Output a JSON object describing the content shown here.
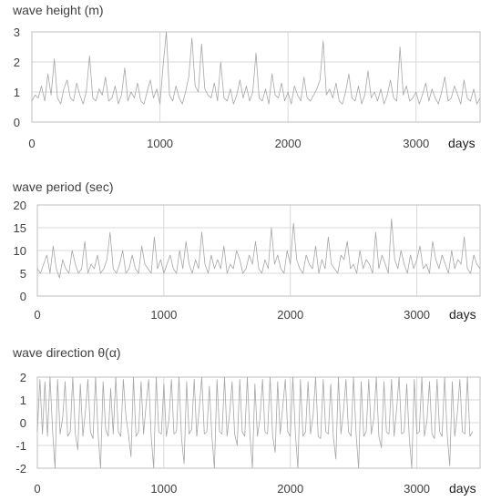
{
  "chart_data": [
    {
      "type": "line",
      "title": "wave height (m)",
      "xlabel": "days",
      "ylabel": "",
      "xlim": [
        0,
        3500
      ],
      "ylim": [
        0,
        3
      ],
      "x_ticks": [
        0,
        1000,
        2000,
        3000
      ],
      "y_ticks": [
        0,
        1,
        2,
        3
      ],
      "grid": true,
      "line_color": "#a6a6a6",
      "series": [
        {
          "x_start": 0,
          "x_step": 25,
          "values": [
            0.7,
            0.9,
            0.8,
            1.2,
            0.7,
            1.6,
            0.9,
            2.1,
            0.8,
            0.6,
            1.1,
            1.4,
            0.8,
            0.7,
            1.3,
            0.9,
            0.6,
            1.0,
            2.2,
            0.8,
            0.7,
            1.1,
            0.9,
            1.5,
            0.7,
            0.8,
            1.2,
            0.6,
            0.9,
            1.8,
            0.7,
            1.0,
            0.8,
            1.3,
            0.7,
            0.6,
            1.0,
            1.4,
            0.8,
            1.1,
            0.6,
            1.9,
            3.0,
            0.9,
            0.7,
            1.2,
            0.8,
            0.6,
            1.0,
            1.5,
            2.8,
            1.2,
            1.0,
            2.6,
            1.1,
            0.9,
            0.8,
            1.3,
            0.7,
            2.0,
            0.8,
            0.7,
            1.1,
            0.6,
            0.9,
            1.4,
            0.8,
            1.2,
            0.7,
            1.0,
            2.3,
            0.8,
            0.7,
            1.1,
            0.6,
            1.6,
            0.9,
            0.8,
            1.3,
            0.7,
            1.0,
            0.6,
            1.2,
            0.9,
            0.7,
            1.5,
            0.8,
            0.7,
            0.9,
            1.1,
            1.4,
            2.7,
            0.9,
            1.1,
            0.8,
            1.3,
            0.7,
            0.6,
            1.0,
            1.6,
            0.8,
            0.7,
            1.2,
            0.6,
            0.9,
            1.7,
            0.8,
            1.0,
            0.7,
            1.1,
            0.6,
            0.9,
            1.4,
            0.8,
            0.7,
            2.5,
            0.9,
            1.2,
            0.7,
            0.8,
            1.0,
            0.6,
            0.9,
            1.3,
            0.7,
            1.1,
            0.8,
            0.6,
            1.0,
            1.5,
            0.7,
            0.8,
            1.2,
            0.9,
            0.6,
            1.4,
            0.8,
            0.7,
            1.1,
            0.6,
            0.8,
            1.2,
            0.7,
            2.0
          ]
        }
      ]
    },
    {
      "type": "line",
      "title": "wave period (sec)",
      "xlabel": "days",
      "ylabel": "",
      "xlim": [
        0,
        3500
      ],
      "ylim": [
        0,
        20
      ],
      "x_ticks": [
        0,
        1000,
        2000,
        3000
      ],
      "y_ticks": [
        0,
        5,
        10,
        15,
        20
      ],
      "grid": true,
      "line_color": "#a6a6a6",
      "series": [
        {
          "x_start": 0,
          "x_step": 25,
          "values": [
            6,
            5,
            7,
            9,
            5,
            11,
            6,
            4,
            8,
            6,
            5,
            10,
            7,
            5,
            6,
            12,
            5,
            7,
            6,
            9,
            5,
            6,
            8,
            14,
            6,
            5,
            7,
            10,
            5,
            6,
            9,
            6,
            5,
            11,
            7,
            6,
            5,
            13,
            6,
            8,
            5,
            7,
            9,
            6,
            5,
            10,
            6,
            12,
            7,
            5,
            8,
            6,
            14,
            7,
            5,
            9,
            6,
            8,
            6,
            11,
            5,
            7,
            6,
            10,
            8,
            5,
            6,
            9,
            7,
            12,
            6,
            5,
            8,
            6,
            15,
            7,
            9,
            6,
            5,
            10,
            7,
            16,
            8,
            6,
            5,
            9,
            7,
            6,
            11,
            5,
            8,
            6,
            13,
            7,
            6,
            5,
            9,
            8,
            12,
            6,
            7,
            5,
            10,
            6,
            8,
            7,
            5,
            14,
            6,
            9,
            7,
            5,
            17,
            8,
            6,
            10,
            7,
            5,
            9,
            6,
            8,
            11,
            6,
            7,
            5,
            12,
            8,
            6,
            9,
            7,
            5,
            10,
            6,
            8,
            7,
            13,
            6,
            5,
            9,
            7,
            6,
            11,
            8,
            7
          ]
        }
      ]
    },
    {
      "type": "line",
      "title": "wave direction θ(α)",
      "xlabel": "days",
      "ylabel": "",
      "xlim": [
        0,
        3500
      ],
      "ylim": [
        -2,
        2
      ],
      "x_ticks": [
        0,
        1000,
        2000,
        3000
      ],
      "y_ticks": [
        -2,
        -1,
        0,
        1,
        2
      ],
      "grid": true,
      "line_color": "#a6a6a6",
      "series": [
        {
          "x_start": 0,
          "x_step": 20,
          "values": [
            -0.4,
            1.9,
            -0.5,
            1.8,
            -0.6,
            2.0,
            -0.3,
            -2.0,
            1.9,
            -0.5,
            0.2,
            1.8,
            -0.6,
            -0.4,
            2.0,
            -0.5,
            -1.2,
            1.7,
            -0.6,
            0.5,
            1.9,
            -0.4,
            -0.7,
            2.0,
            -0.5,
            -2.0,
            1.8,
            -0.3,
            -0.6,
            1.5,
            -0.5,
            2.0,
            -0.4,
            -0.6,
            1.9,
            0.3,
            -0.5,
            -1.5,
            2.0,
            -0.6,
            -0.4,
            1.8,
            -0.5,
            0.8,
            1.9,
            -0.6,
            -2.0,
            2.0,
            -0.4,
            -0.5,
            1.7,
            -0.6,
            0.1,
            1.9,
            -0.5,
            -0.4,
            2.0,
            -0.7,
            -1.8,
            1.8,
            -0.5,
            -0.3,
            1.9,
            -0.6,
            0.6,
            2.0,
            -0.5,
            -0.4,
            1.6,
            -0.6,
            -2.0,
            1.9,
            -0.4,
            -0.5,
            2.0,
            -0.6,
            0.4,
            1.8,
            -0.5,
            -1.0,
            1.9,
            -0.4,
            -0.6,
            2.0,
            -0.5,
            -2.0,
            1.7,
            -0.6,
            0.2,
            1.9,
            -0.4,
            -0.5,
            2.0,
            -0.6,
            -1.3,
            1.8,
            -0.5,
            0.7,
            1.9,
            -0.4,
            -0.6,
            2.0,
            -0.5,
            -2.0,
            1.9,
            -0.6,
            -0.4,
            1.8,
            -0.5,
            0.3,
            2.0,
            -0.6,
            -0.7,
            1.9,
            -0.4,
            -0.5,
            1.7,
            -0.6,
            -1.6,
            2.0,
            -0.5,
            0.5,
            1.9,
            -0.4,
            -0.6,
            2.0,
            -0.5,
            -2.0,
            1.8,
            -0.6,
            -0.4,
            1.9,
            -0.5,
            0.2,
            2.0,
            -0.6,
            -1.1,
            1.8,
            -0.4,
            -0.5,
            1.9,
            -0.6,
            0.6,
            2.0,
            -0.5,
            -0.4,
            1.7,
            -0.6,
            -2.0,
            1.9,
            -0.5,
            -0.4,
            2.0,
            -0.6,
            0.1,
            1.8,
            -0.5,
            -0.7,
            1.9,
            -0.4,
            -0.6,
            2.0,
            -0.5,
            -1.9,
            1.8,
            -0.6,
            0.4,
            1.9,
            -0.4,
            -0.5,
            2.0,
            -0.6,
            -0.4
          ]
        }
      ]
    }
  ]
}
